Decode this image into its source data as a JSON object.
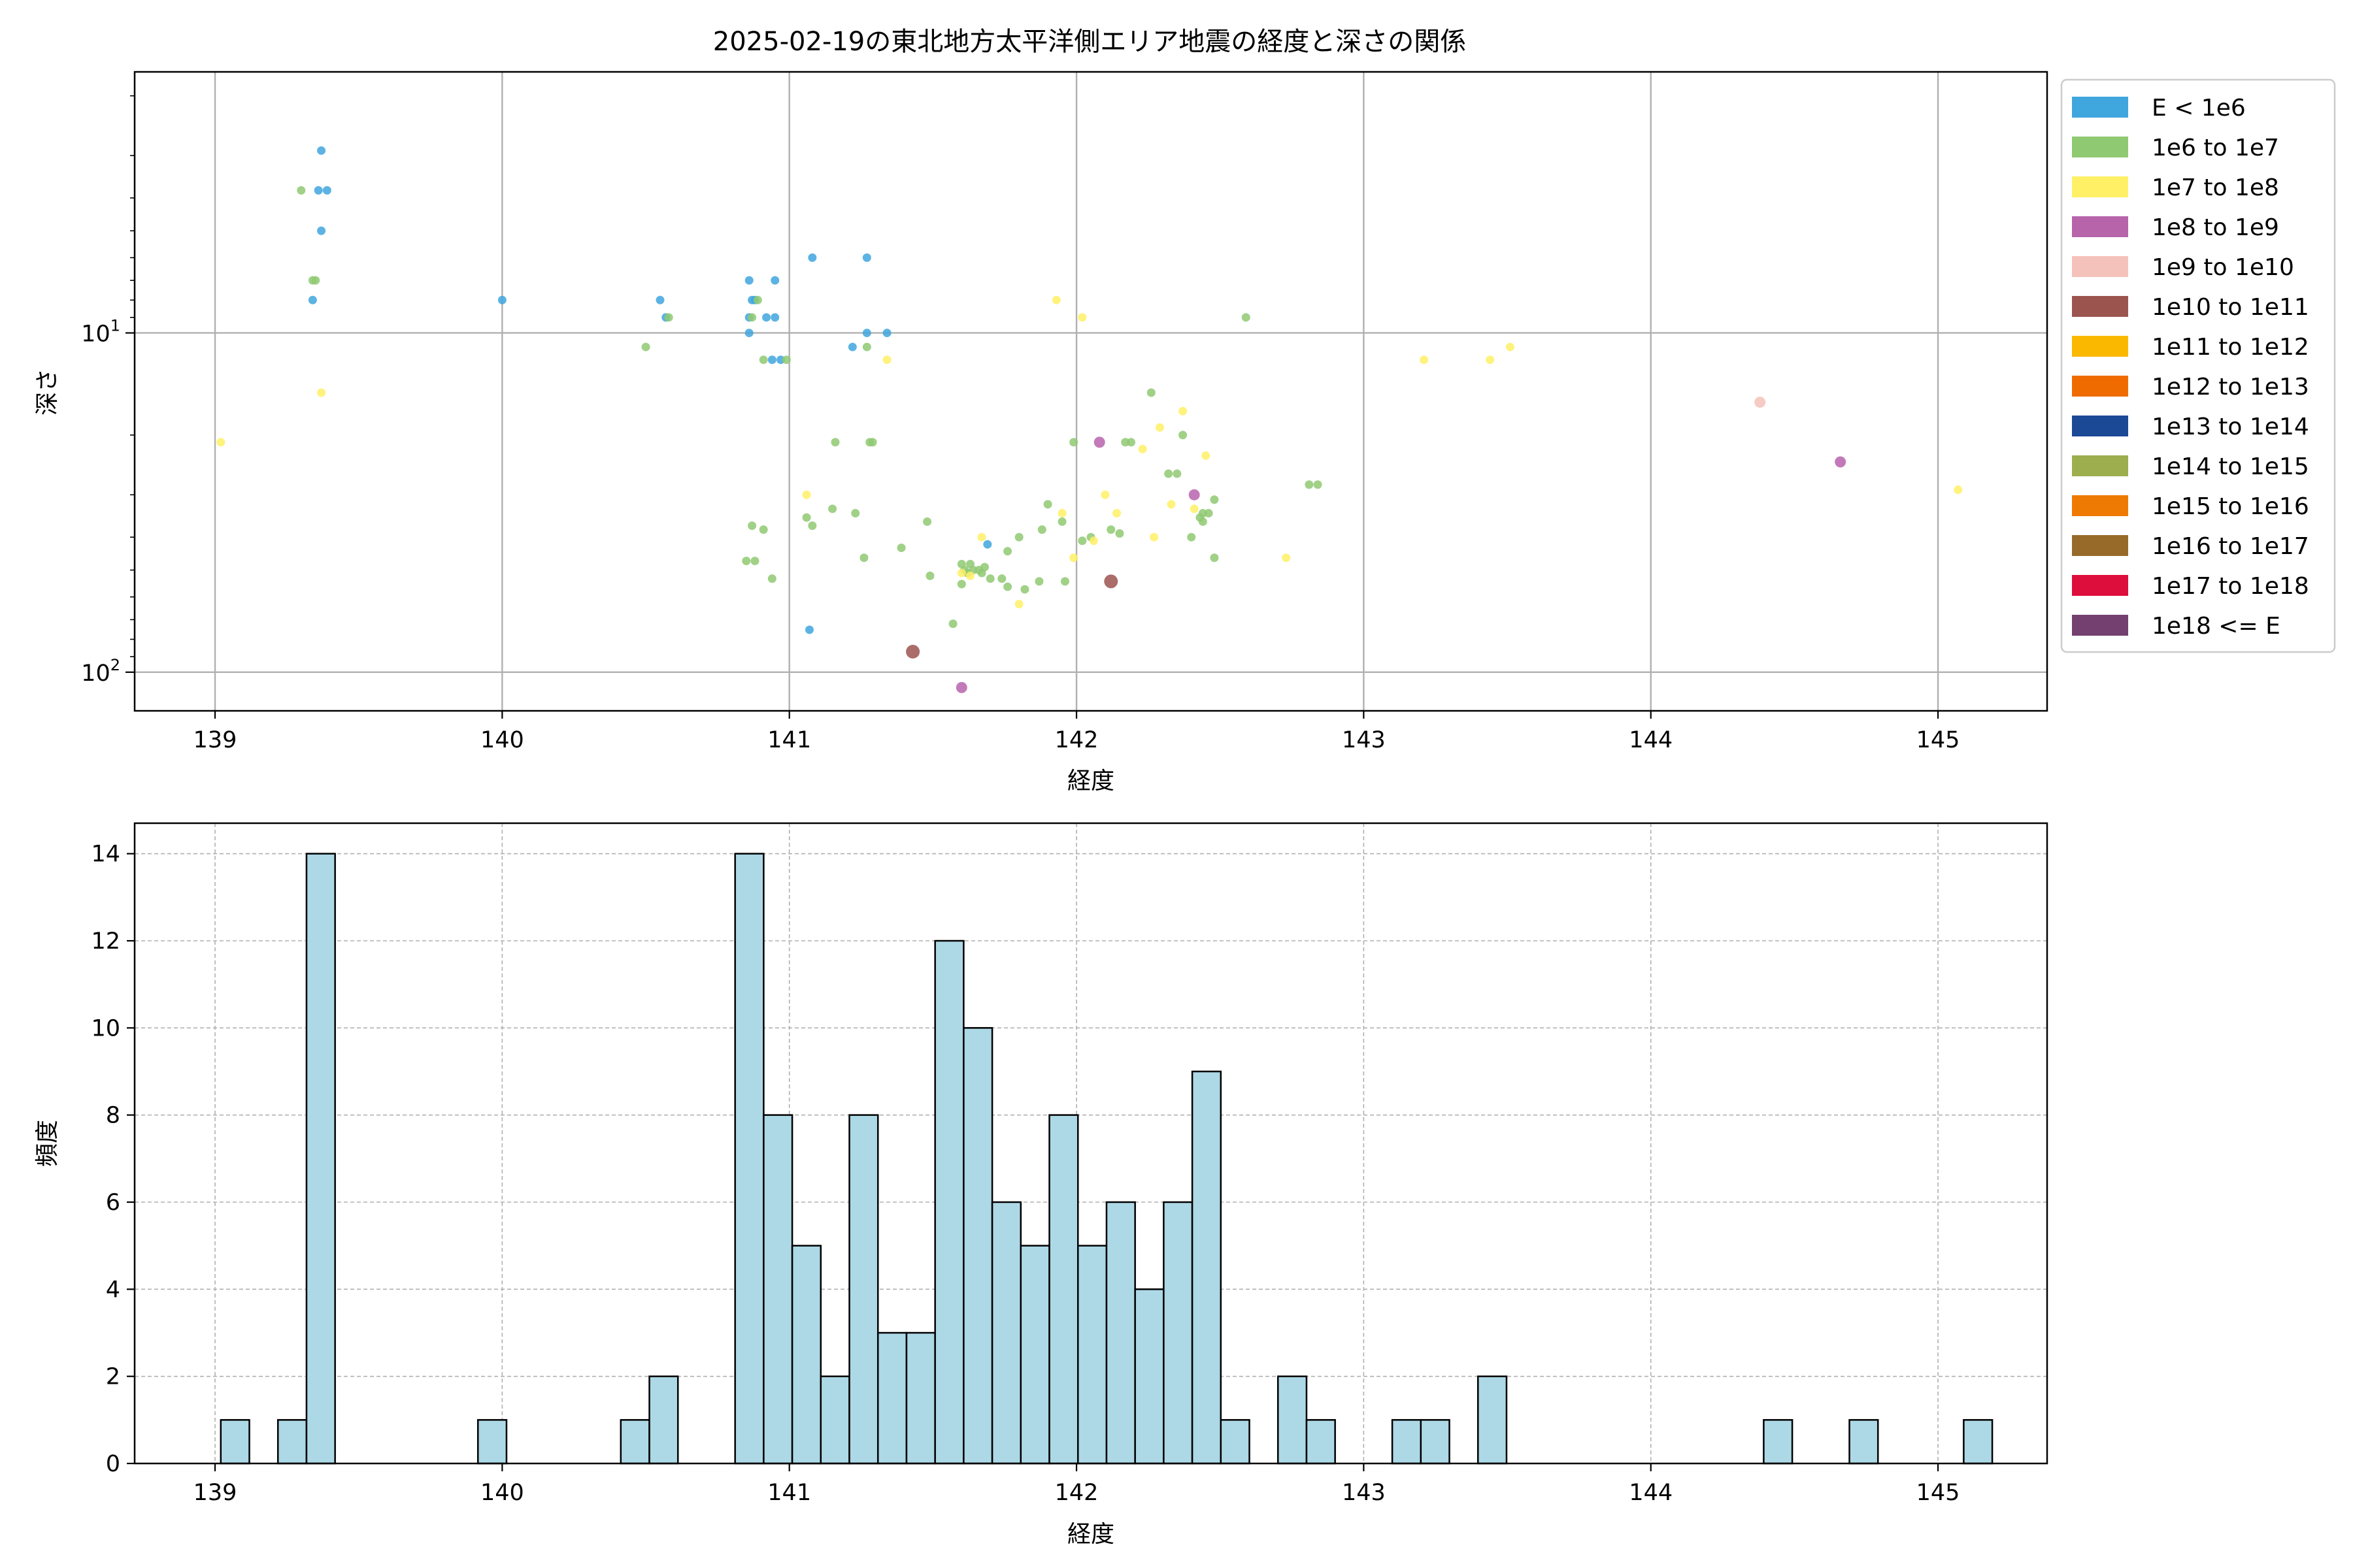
{
  "chart_data": [
    {
      "type": "scatter",
      "title": "2025-02-19の東北地方太平洋側エリア地震の経度と深さの関係",
      "xlabel": "経度",
      "ylabel": "深さ",
      "xlim": [
        138.72,
        145.38
      ],
      "ylim": [
        130,
        1.7
      ],
      "y_scale": "log",
      "y_inverted": true,
      "grid": true,
      "x_ticks": [
        139,
        140,
        141,
        142,
        143,
        144,
        145
      ],
      "y_ticks": [
        {
          "value": 10,
          "label": "10",
          "sup": "1"
        },
        {
          "value": 100,
          "label": "10",
          "sup": "2"
        }
      ],
      "legend_position": "outside-right",
      "legend": [
        {
          "label": "E < 1e6",
          "color": "#3fa6de"
        },
        {
          "label": "1e6 to 1e7",
          "color": "#8fc972"
        },
        {
          "label": "1e7 to 1e8",
          "color": "#fff066"
        },
        {
          "label": "1e8 to 1e9",
          "color": "#b764ab"
        },
        {
          "label": "1e9 to 1e10",
          "color": "#f5c2bb"
        },
        {
          "label": "1e10 to 1e11",
          "color": "#9c544f"
        },
        {
          "label": "1e11 to 1e12",
          "color": "#fbb801"
        },
        {
          "label": "1e12 to 1e13",
          "color": "#ef6b00"
        },
        {
          "label": "1e13 to 1e14",
          "color": "#1b4996"
        },
        {
          "label": "1e14 to 1e15",
          "color": "#9cae4e"
        },
        {
          "label": "1e15 to 1e16",
          "color": "#ef7a03"
        },
        {
          "label": "1e16 to 1e17",
          "color": "#976a2a"
        },
        {
          "label": "1e17 to 1e18",
          "color": "#dd0d3c"
        },
        {
          "label": "1e18 <= E",
          "color": "#73406f"
        }
      ],
      "series": [
        {
          "name": "E < 1e6",
          "color": "#3fa6de",
          "points": [
            [
              139.37,
              2.9
            ],
            [
              139.36,
              3.8
            ],
            [
              139.39,
              3.8
            ],
            [
              139.37,
              5.0
            ],
            [
              139.34,
              8.0
            ],
            [
              140.0,
              8.0
            ],
            [
              140.55,
              8.0
            ],
            [
              140.57,
              9.0
            ],
            [
              140.86,
              7.0
            ],
            [
              140.87,
              8.0
            ],
            [
              140.88,
              8.0
            ],
            [
              140.86,
              9.0
            ],
            [
              140.92,
              9.0
            ],
            [
              140.95,
              7.0
            ],
            [
              140.95,
              9.0
            ],
            [
              140.86,
              10.0
            ],
            [
              140.94,
              12.0
            ],
            [
              140.97,
              12.0
            ],
            [
              141.08,
              6.0
            ],
            [
              141.27,
              6.0
            ],
            [
              141.27,
              10.0
            ],
            [
              141.34,
              10.0
            ],
            [
              141.22,
              11.0
            ],
            [
              141.07,
              75.0
            ],
            [
              141.69,
              42.0
            ]
          ]
        },
        {
          "name": "1e6 to 1e7",
          "color": "#8fc972",
          "points": [
            [
              139.3,
              3.8
            ],
            [
              139.34,
              7.0
            ],
            [
              139.35,
              7.0
            ],
            [
              140.5,
              11.0
            ],
            [
              140.89,
              8.0
            ],
            [
              140.87,
              9.0
            ],
            [
              140.91,
              12.0
            ],
            [
              140.99,
              12.0
            ],
            [
              141.27,
              11.0
            ],
            [
              140.58,
              9.0
            ],
            [
              140.87,
              37.0
            ],
            [
              140.88,
              47.0
            ],
            [
              140.91,
              38.0
            ],
            [
              140.85,
              47.0
            ],
            [
              140.94,
              53.0
            ],
            [
              141.06,
              35.0
            ],
            [
              141.08,
              37.0
            ],
            [
              141.15,
              33.0
            ],
            [
              141.23,
              34.0
            ],
            [
              141.16,
              21.0
            ],
            [
              141.28,
              21.0
            ],
            [
              141.29,
              21.0
            ],
            [
              141.26,
              46.0
            ],
            [
              141.39,
              43.0
            ],
            [
              141.48,
              36.0
            ],
            [
              141.49,
              52.0
            ],
            [
              141.6,
              48.0
            ],
            [
              141.61,
              50.0
            ],
            [
              141.63,
              48.0
            ],
            [
              141.64,
              50.0
            ],
            [
              141.66,
              50.0
            ],
            [
              141.6,
              55.0
            ],
            [
              141.62,
              51.0
            ],
            [
              141.67,
              51.0
            ],
            [
              141.7,
              53.0
            ],
            [
              141.74,
              53.0
            ],
            [
              141.76,
              44.0
            ],
            [
              141.8,
              40.0
            ],
            [
              141.82,
              57.0
            ],
            [
              141.76,
              56.0
            ],
            [
              141.88,
              38.0
            ],
            [
              141.9,
              32.0
            ],
            [
              141.95,
              36.0
            ],
            [
              141.96,
              54.0
            ],
            [
              141.87,
              54.0
            ],
            [
              141.99,
              21.0
            ],
            [
              142.02,
              41.0
            ],
            [
              142.05,
              40.0
            ],
            [
              142.12,
              38.0
            ],
            [
              142.15,
              39.0
            ],
            [
              142.17,
              21.0
            ],
            [
              142.19,
              21.0
            ],
            [
              142.26,
              15.0
            ],
            [
              142.32,
              26.0
            ],
            [
              142.35,
              26.0
            ],
            [
              142.37,
              20.0
            ],
            [
              142.4,
              40.0
            ],
            [
              142.43,
              35.0
            ],
            [
              142.44,
              34.0
            ],
            [
              142.46,
              34.0
            ],
            [
              142.48,
              31.0
            ],
            [
              142.48,
              46.0
            ],
            [
              142.44,
              36.0
            ],
            [
              142.59,
              9.0
            ],
            [
              142.81,
              28.0
            ],
            [
              142.84,
              28.0
            ],
            [
              141.57,
              72.0
            ],
            [
              141.68,
              49.0
            ]
          ]
        },
        {
          "name": "1e7 to 1e8",
          "color": "#fff066",
          "points": [
            [
              139.02,
              21.0
            ],
            [
              139.37,
              15.0
            ],
            [
              141.34,
              12.0
            ],
            [
              141.06,
              30.0
            ],
            [
              141.6,
              51.0
            ],
            [
              141.63,
              52.0
            ],
            [
              141.67,
              40.0
            ],
            [
              141.8,
              63.0
            ],
            [
              141.93,
              8.0
            ],
            [
              142.02,
              9.0
            ],
            [
              141.95,
              34.0
            ],
            [
              141.99,
              46.0
            ],
            [
              142.06,
              41.0
            ],
            [
              142.1,
              30.0
            ],
            [
              142.14,
              34.0
            ],
            [
              142.23,
              22.0
            ],
            [
              142.27,
              40.0
            ],
            [
              142.29,
              19.0
            ],
            [
              142.33,
              32.0
            ],
            [
              142.37,
              17.0
            ],
            [
              142.41,
              33.0
            ],
            [
              142.45,
              23.0
            ],
            [
              142.73,
              46.0
            ],
            [
              143.21,
              12.0
            ],
            [
              143.44,
              12.0
            ],
            [
              143.51,
              11.0
            ],
            [
              145.07,
              29.0
            ]
          ]
        },
        {
          "name": "1e8 to 1e9",
          "color": "#b764ab",
          "points": [
            [
              142.08,
              21.0
            ],
            [
              142.41,
              30.0
            ],
            [
              141.6,
              111.0
            ],
            [
              144.66,
              24.0
            ]
          ]
        },
        {
          "name": "1e9 to 1e10",
          "color": "#f5c2bb",
          "points": [
            [
              144.38,
              16.0
            ]
          ]
        },
        {
          "name": "1e10 to 1e11",
          "color": "#9c544f",
          "points": [
            [
              141.43,
              87.0
            ],
            [
              142.12,
              54.0
            ]
          ]
        }
      ]
    },
    {
      "type": "bar",
      "subtype": "histogram",
      "title": "",
      "xlabel": "経度",
      "ylabel": "頻度",
      "xlim": [
        138.72,
        145.38
      ],
      "ylim": [
        0,
        14.7
      ],
      "grid": true,
      "bar_color": "#add8e6",
      "bar_edge_color": "#000000",
      "bin_start": 139.02,
      "bin_width": 0.0995,
      "x_ticks": [
        139,
        140,
        141,
        142,
        143,
        144,
        145
      ],
      "y_ticks": [
        0,
        2,
        4,
        6,
        8,
        10,
        12,
        14
      ],
      "values": [
        1,
        0,
        1,
        14,
        0,
        0,
        0,
        0,
        0,
        1,
        0,
        0,
        0,
        0,
        1,
        2,
        0,
        0,
        14,
        8,
        5,
        2,
        8,
        3,
        3,
        12,
        10,
        6,
        5,
        8,
        5,
        6,
        4,
        6,
        9,
        1,
        0,
        2,
        1,
        0,
        0,
        1,
        1,
        0,
        2,
        0,
        0,
        0,
        0,
        0,
        0,
        0,
        0,
        0,
        1,
        0,
        0,
        1,
        0,
        0,
        0,
        1
      ]
    }
  ]
}
